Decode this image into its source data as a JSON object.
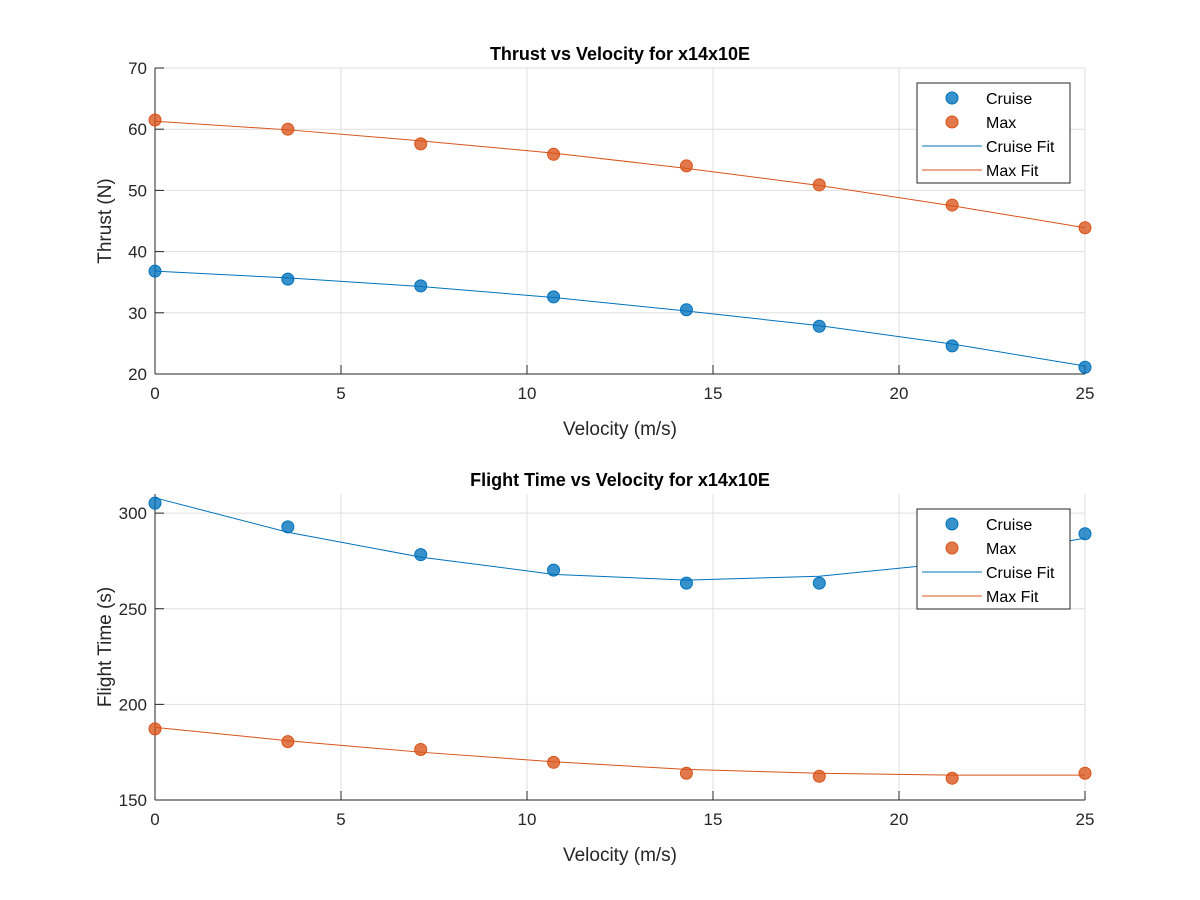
{
  "chart_data": [
    {
      "type": "line",
      "title": "Thrust vs Velocity for x14x10E",
      "xlabel": "Velocity (m/s)",
      "ylabel": "Thrust (N)",
      "xlim": [
        0,
        25
      ],
      "ylim": [
        20,
        70
      ],
      "xticks": [
        0,
        5,
        10,
        15,
        20,
        25
      ],
      "yticks": [
        20,
        30,
        40,
        50,
        60,
        70
      ],
      "grid": true,
      "legend_placement": "top-right",
      "x": [
        0,
        3.571,
        7.143,
        10.714,
        14.286,
        17.857,
        21.429,
        25
      ],
      "series": [
        {
          "name": "Cruise",
          "style": "markers",
          "color": "#0072BD",
          "values": [
            36.8,
            35.5,
            34.4,
            32.6,
            30.5,
            27.8,
            24.6,
            21.1
          ]
        },
        {
          "name": "Max",
          "style": "markers",
          "color": "#D95319",
          "values": [
            61.5,
            60.0,
            57.6,
            55.9,
            54.0,
            50.9,
            47.6,
            43.9
          ]
        },
        {
          "name": "Cruise Fit",
          "style": "line",
          "color": "#0072BD",
          "values": [
            36.8,
            35.7,
            34.3,
            32.5,
            30.3,
            27.9,
            24.9,
            21.3
          ]
        },
        {
          "name": "Max Fit",
          "style": "line",
          "color": "#D95319",
          "values": [
            61.3,
            59.9,
            58.1,
            56.1,
            53.6,
            50.8,
            47.5,
            43.9
          ]
        }
      ]
    },
    {
      "type": "line",
      "title": "Flight Time vs Velocity for x14x10E",
      "xlabel": "Velocity (m/s)",
      "ylabel": "Flight Time (s)",
      "xlim": [
        0,
        25
      ],
      "ylim": [
        150,
        310
      ],
      "xticks": [
        0,
        5,
        10,
        15,
        20,
        25
      ],
      "yticks": [
        150,
        200,
        250,
        300
      ],
      "grid": true,
      "legend_placement": "top-right",
      "x": [
        0,
        3.571,
        7.143,
        10.714,
        14.286,
        17.857,
        21.429,
        25
      ],
      "series": [
        {
          "name": "Cruise",
          "style": "markers",
          "color": "#0072BD",
          "values": [
            305.2,
            292.8,
            278.3,
            270.2,
            263.4,
            263.4,
            274,
            289.2
          ]
        },
        {
          "name": "Max",
          "style": "markers",
          "color": "#D95319",
          "values": [
            187.2,
            180.5,
            176.4,
            169.7,
            164.0,
            162.4,
            161.4,
            164.0
          ]
        },
        {
          "name": "Cruise Fit",
          "style": "line",
          "color": "#0072BD",
          "values": [
            308,
            290,
            277,
            268,
            265,
            267,
            274,
            287
          ]
        },
        {
          "name": "Max Fit",
          "style": "line",
          "color": "#D95319",
          "values": [
            188,
            181,
            175,
            170,
            166,
            164,
            163,
            163
          ]
        }
      ]
    }
  ]
}
